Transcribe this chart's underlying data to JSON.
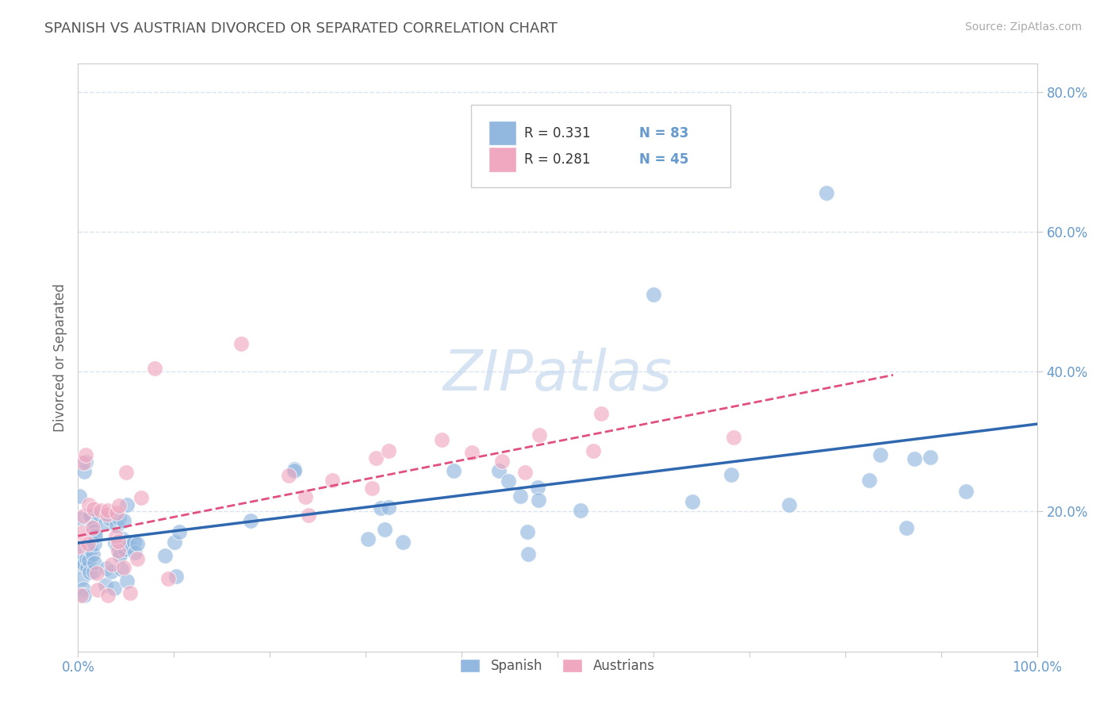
{
  "title": "SPANISH VS AUSTRIAN DIVORCED OR SEPARATED CORRELATION CHART",
  "source_text": "Source: ZipAtlas.com",
  "ylabel": "Divorced or Separated",
  "xlim": [
    0.0,
    1.0
  ],
  "ylim": [
    0.0,
    0.84
  ],
  "yticks_right": [
    0.2,
    0.4,
    0.6,
    0.8
  ],
  "ytick_labels_right": [
    "20.0%",
    "40.0%",
    "60.0%",
    "80.0%"
  ],
  "xticks": [
    0.0,
    0.1,
    0.2,
    0.3,
    0.4,
    0.5,
    0.6,
    0.7,
    0.8,
    0.9,
    1.0
  ],
  "xtick_labels": [
    "0.0%",
    "",
    "",
    "",
    "",
    "",
    "",
    "",
    "",
    "",
    "100.0%"
  ],
  "spanish_color": "#92b8e0",
  "austrians_color": "#f0a8c0",
  "spanish_line_color": "#3068b0",
  "austrians_line_color": "#e05080",
  "legend_R_spanish": "R = 0.331",
  "legend_N_spanish": "N = 83",
  "legend_R_austrians": "R = 0.281",
  "legend_N_austrians": "N = 45",
  "background_color": "#ffffff",
  "title_color": "#555555",
  "axis_label_color": "#666666",
  "tick_color": "#6699cc",
  "grid_color": "#d8e4f0",
  "grid_linestyle": "--",
  "watermark_color": "#c5d8ee"
}
